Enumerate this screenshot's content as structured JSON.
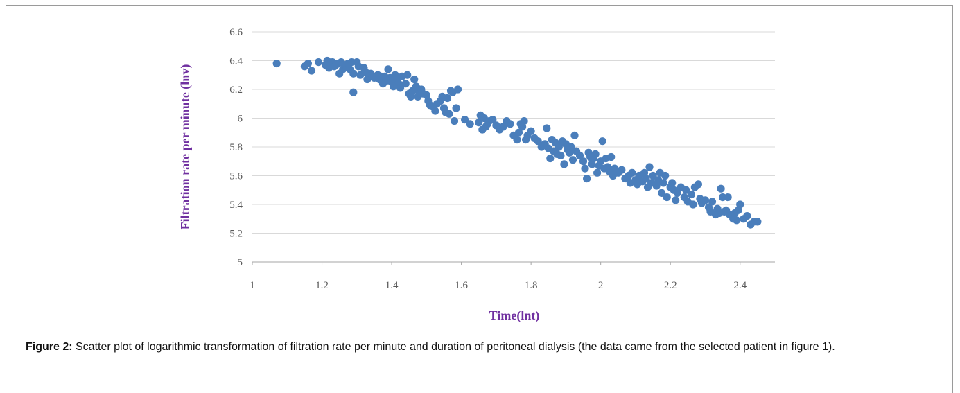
{
  "chart_data": {
    "type": "scatter",
    "title": "",
    "xlabel": "Time(lnt)",
    "ylabel": "Filtration rate per minute (lnv)",
    "xlim": [
      1,
      2.5
    ],
    "ylim": [
      5,
      6.6
    ],
    "x_ticks": [
      "1",
      "1.2",
      "1.4",
      "1.6",
      "1.8",
      "2",
      "2.2",
      "2.4"
    ],
    "y_ticks": [
      "5",
      "5.2",
      "5.4",
      "5.6",
      "5.8",
      "6",
      "6.2",
      "6.4",
      "6.6"
    ],
    "grid": "horizontal",
    "legend": "none",
    "marker_color": "#4a7ebb",
    "series": [
      {
        "points": [
          [
            1.07,
            6.38
          ],
          [
            1.15,
            6.36
          ],
          [
            1.16,
            6.38
          ],
          [
            1.17,
            6.33
          ],
          [
            1.19,
            6.39
          ],
          [
            1.21,
            6.37
          ],
          [
            1.215,
            6.4
          ],
          [
            1.22,
            6.35
          ],
          [
            1.225,
            6.38
          ],
          [
            1.23,
            6.39
          ],
          [
            1.235,
            6.36
          ],
          [
            1.24,
            6.37
          ],
          [
            1.245,
            6.38
          ],
          [
            1.25,
            6.31
          ],
          [
            1.255,
            6.39
          ],
          [
            1.26,
            6.34
          ],
          [
            1.265,
            6.37
          ],
          [
            1.27,
            6.36
          ],
          [
            1.275,
            6.38
          ],
          [
            1.28,
            6.34
          ],
          [
            1.285,
            6.39
          ],
          [
            1.29,
            6.18
          ],
          [
            1.29,
            6.31
          ],
          [
            1.3,
            6.39
          ],
          [
            1.305,
            6.36
          ],
          [
            1.31,
            6.3
          ],
          [
            1.32,
            6.35
          ],
          [
            1.325,
            6.32
          ],
          [
            1.33,
            6.27
          ],
          [
            1.34,
            6.31
          ],
          [
            1.345,
            6.29
          ],
          [
            1.35,
            6.28
          ],
          [
            1.36,
            6.3
          ],
          [
            1.365,
            6.27
          ],
          [
            1.37,
            6.29
          ],
          [
            1.375,
            6.24
          ],
          [
            1.38,
            6.29
          ],
          [
            1.385,
            6.26
          ],
          [
            1.39,
            6.34
          ],
          [
            1.395,
            6.28
          ],
          [
            1.4,
            6.25
          ],
          [
            1.405,
            6.22
          ],
          [
            1.41,
            6.3
          ],
          [
            1.415,
            6.28
          ],
          [
            1.42,
            6.24
          ],
          [
            1.425,
            6.21
          ],
          [
            1.43,
            6.29
          ],
          [
            1.44,
            6.24
          ],
          [
            1.445,
            6.3
          ],
          [
            1.45,
            6.17
          ],
          [
            1.455,
            6.15
          ],
          [
            1.46,
            6.19
          ],
          [
            1.465,
            6.27
          ],
          [
            1.47,
            6.22
          ],
          [
            1.475,
            6.15
          ],
          [
            1.48,
            6.18
          ],
          [
            1.485,
            6.2
          ],
          [
            1.49,
            6.17
          ],
          [
            1.5,
            6.16
          ],
          [
            1.505,
            6.12
          ],
          [
            1.51,
            6.09
          ],
          [
            1.52,
            6.08
          ],
          [
            1.525,
            6.05
          ],
          [
            1.53,
            6.1
          ],
          [
            1.54,
            6.12
          ],
          [
            1.545,
            6.15
          ],
          [
            1.55,
            6.07
          ],
          [
            1.555,
            6.04
          ],
          [
            1.56,
            6.14
          ],
          [
            1.565,
            6.03
          ],
          [
            1.57,
            6.19
          ],
          [
            1.575,
            6.18
          ],
          [
            1.58,
            5.98
          ],
          [
            1.585,
            6.07
          ],
          [
            1.59,
            6.2
          ],
          [
            1.61,
            5.99
          ],
          [
            1.625,
            5.96
          ],
          [
            1.65,
            5.97
          ],
          [
            1.655,
            6.02
          ],
          [
            1.66,
            5.92
          ],
          [
            1.665,
            6.0
          ],
          [
            1.67,
            5.94
          ],
          [
            1.675,
            5.96
          ],
          [
            1.68,
            5.98
          ],
          [
            1.69,
            5.99
          ],
          [
            1.7,
            5.95
          ],
          [
            1.71,
            5.92
          ],
          [
            1.72,
            5.94
          ],
          [
            1.73,
            5.98
          ],
          [
            1.74,
            5.96
          ],
          [
            1.75,
            5.88
          ],
          [
            1.76,
            5.85
          ],
          [
            1.765,
            5.9
          ],
          [
            1.77,
            5.96
          ],
          [
            1.775,
            5.94
          ],
          [
            1.78,
            5.98
          ],
          [
            1.785,
            5.85
          ],
          [
            1.79,
            5.88
          ],
          [
            1.8,
            5.91
          ],
          [
            1.81,
            5.86
          ],
          [
            1.82,
            5.84
          ],
          [
            1.83,
            5.8
          ],
          [
            1.84,
            5.82
          ],
          [
            1.845,
            5.93
          ],
          [
            1.85,
            5.79
          ],
          [
            1.855,
            5.72
          ],
          [
            1.86,
            5.85
          ],
          [
            1.865,
            5.77
          ],
          [
            1.87,
            5.83
          ],
          [
            1.875,
            5.75
          ],
          [
            1.88,
            5.8
          ],
          [
            1.885,
            5.74
          ],
          [
            1.89,
            5.84
          ],
          [
            1.895,
            5.68
          ],
          [
            1.9,
            5.82
          ],
          [
            1.905,
            5.78
          ],
          [
            1.91,
            5.76
          ],
          [
            1.915,
            5.8
          ],
          [
            1.92,
            5.71
          ],
          [
            1.925,
            5.88
          ],
          [
            1.93,
            5.77
          ],
          [
            1.94,
            5.74
          ],
          [
            1.95,
            5.7
          ],
          [
            1.955,
            5.65
          ],
          [
            1.96,
            5.58
          ],
          [
            1.965,
            5.76
          ],
          [
            1.97,
            5.73
          ],
          [
            1.975,
            5.68
          ],
          [
            1.98,
            5.72
          ],
          [
            1.985,
            5.75
          ],
          [
            1.99,
            5.62
          ],
          [
            1.995,
            5.67
          ],
          [
            2.0,
            5.7
          ],
          [
            2.005,
            5.84
          ],
          [
            2.01,
            5.65
          ],
          [
            2.015,
            5.72
          ],
          [
            2.02,
            5.66
          ],
          [
            2.025,
            5.63
          ],
          [
            2.03,
            5.73
          ],
          [
            2.035,
            5.6
          ],
          [
            2.04,
            5.65
          ],
          [
            2.05,
            5.62
          ],
          [
            2.06,
            5.64
          ],
          [
            2.07,
            5.58
          ],
          [
            2.08,
            5.6
          ],
          [
            2.085,
            5.55
          ],
          [
            2.09,
            5.62
          ],
          [
            2.1,
            5.57
          ],
          [
            2.105,
            5.54
          ],
          [
            2.11,
            5.6
          ],
          [
            2.12,
            5.56
          ],
          [
            2.125,
            5.62
          ],
          [
            2.13,
            5.58
          ],
          [
            2.135,
            5.52
          ],
          [
            2.14,
            5.66
          ],
          [
            2.145,
            5.55
          ],
          [
            2.15,
            5.6
          ],
          [
            2.16,
            5.53
          ],
          [
            2.165,
            5.57
          ],
          [
            2.17,
            5.62
          ],
          [
            2.175,
            5.48
          ],
          [
            2.18,
            5.55
          ],
          [
            2.185,
            5.6
          ],
          [
            2.19,
            5.45
          ],
          [
            2.2,
            5.52
          ],
          [
            2.205,
            5.55
          ],
          [
            2.21,
            5.5
          ],
          [
            2.215,
            5.43
          ],
          [
            2.22,
            5.48
          ],
          [
            2.23,
            5.52
          ],
          [
            2.24,
            5.45
          ],
          [
            2.245,
            5.5
          ],
          [
            2.25,
            5.42
          ],
          [
            2.26,
            5.47
          ],
          [
            2.265,
            5.4
          ],
          [
            2.27,
            5.52
          ],
          [
            2.28,
            5.54
          ],
          [
            2.285,
            5.44
          ],
          [
            2.29,
            5.41
          ],
          [
            2.3,
            5.43
          ],
          [
            2.31,
            5.38
          ],
          [
            2.315,
            5.35
          ],
          [
            2.32,
            5.42
          ],
          [
            2.33,
            5.33
          ],
          [
            2.335,
            5.37
          ],
          [
            2.34,
            5.34
          ],
          [
            2.345,
            5.51
          ],
          [
            2.35,
            5.45
          ],
          [
            2.355,
            5.35
          ],
          [
            2.36,
            5.36
          ],
          [
            2.365,
            5.45
          ],
          [
            2.37,
            5.33
          ],
          [
            2.38,
            5.3
          ],
          [
            2.385,
            5.34
          ],
          [
            2.39,
            5.29
          ],
          [
            2.395,
            5.36
          ],
          [
            2.4,
            5.4
          ],
          [
            2.41,
            5.3
          ],
          [
            2.42,
            5.32
          ],
          [
            2.43,
            5.26
          ],
          [
            2.44,
            5.28
          ],
          [
            2.45,
            5.28
          ]
        ]
      }
    ]
  },
  "caption": {
    "label": "Figure 2:",
    "text": " Scatter plot of logarithmic transformation of filtration rate per minute and duration of peritoneal dialysis (the data came from the selected patient in figure 1)."
  }
}
